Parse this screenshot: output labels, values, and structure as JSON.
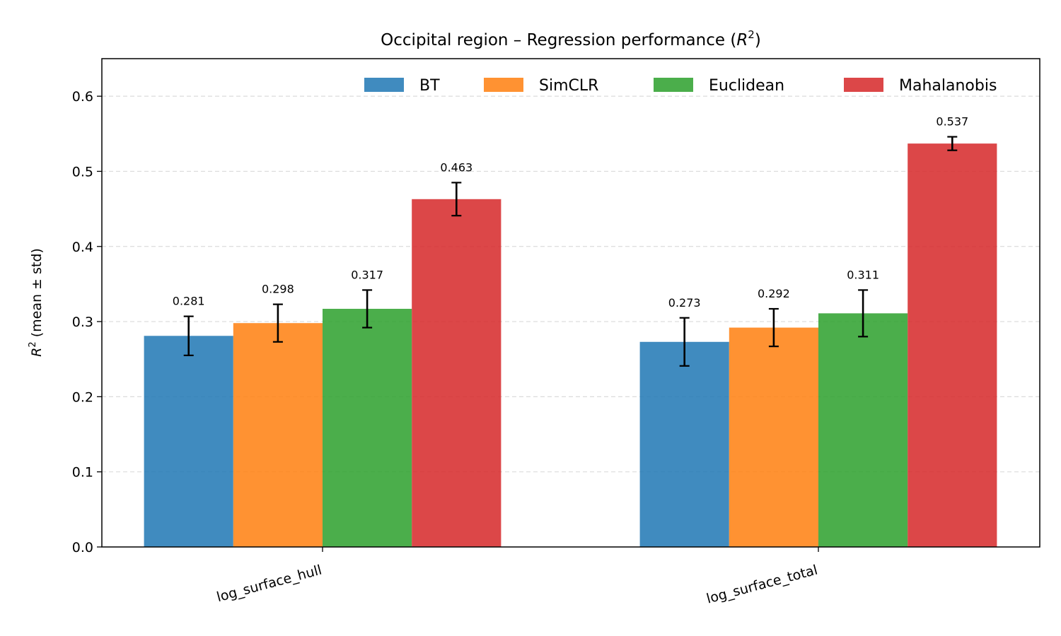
{
  "chart_data": {
    "type": "bar",
    "title": "Occipital region – Regression performance (",
    "title_math": "R",
    "title_sup": "2",
    "title_end": ")",
    "ylabel_math": "R",
    "ylabel_sup": "2",
    "ylabel_rest": " (mean ± std)",
    "xlabel": "",
    "categories": [
      "log_surface_hull",
      "log_surface_total"
    ],
    "series": [
      {
        "name": "BT",
        "color": "#1f77b4",
        "values": [
          0.281,
          0.273
        ],
        "errors": [
          0.026,
          0.032
        ],
        "labels": [
          "0.281",
          "0.273"
        ]
      },
      {
        "name": "SimCLR",
        "color": "#ff7f0e",
        "values": [
          0.298,
          0.292
        ],
        "errors": [
          0.025,
          0.025
        ],
        "labels": [
          "0.298",
          "0.292"
        ]
      },
      {
        "name": "Euclidean",
        "color": "#2ca02c",
        "values": [
          0.317,
          0.311
        ],
        "errors": [
          0.025,
          0.031
        ],
        "labels": [
          "0.317",
          "0.311"
        ]
      },
      {
        "name": "Mahalanobis",
        "color": "#d62728",
        "values": [
          0.463,
          0.537
        ],
        "errors": [
          0.022,
          0.009
        ],
        "labels": [
          "0.463",
          "0.537"
        ]
      }
    ],
    "ylim": [
      0,
      0.65
    ],
    "yticks": [
      "0.0",
      "0.1",
      "0.2",
      "0.3",
      "0.4",
      "0.5",
      "0.6"
    ],
    "grid": "y-dashed",
    "legend": "top-right"
  }
}
